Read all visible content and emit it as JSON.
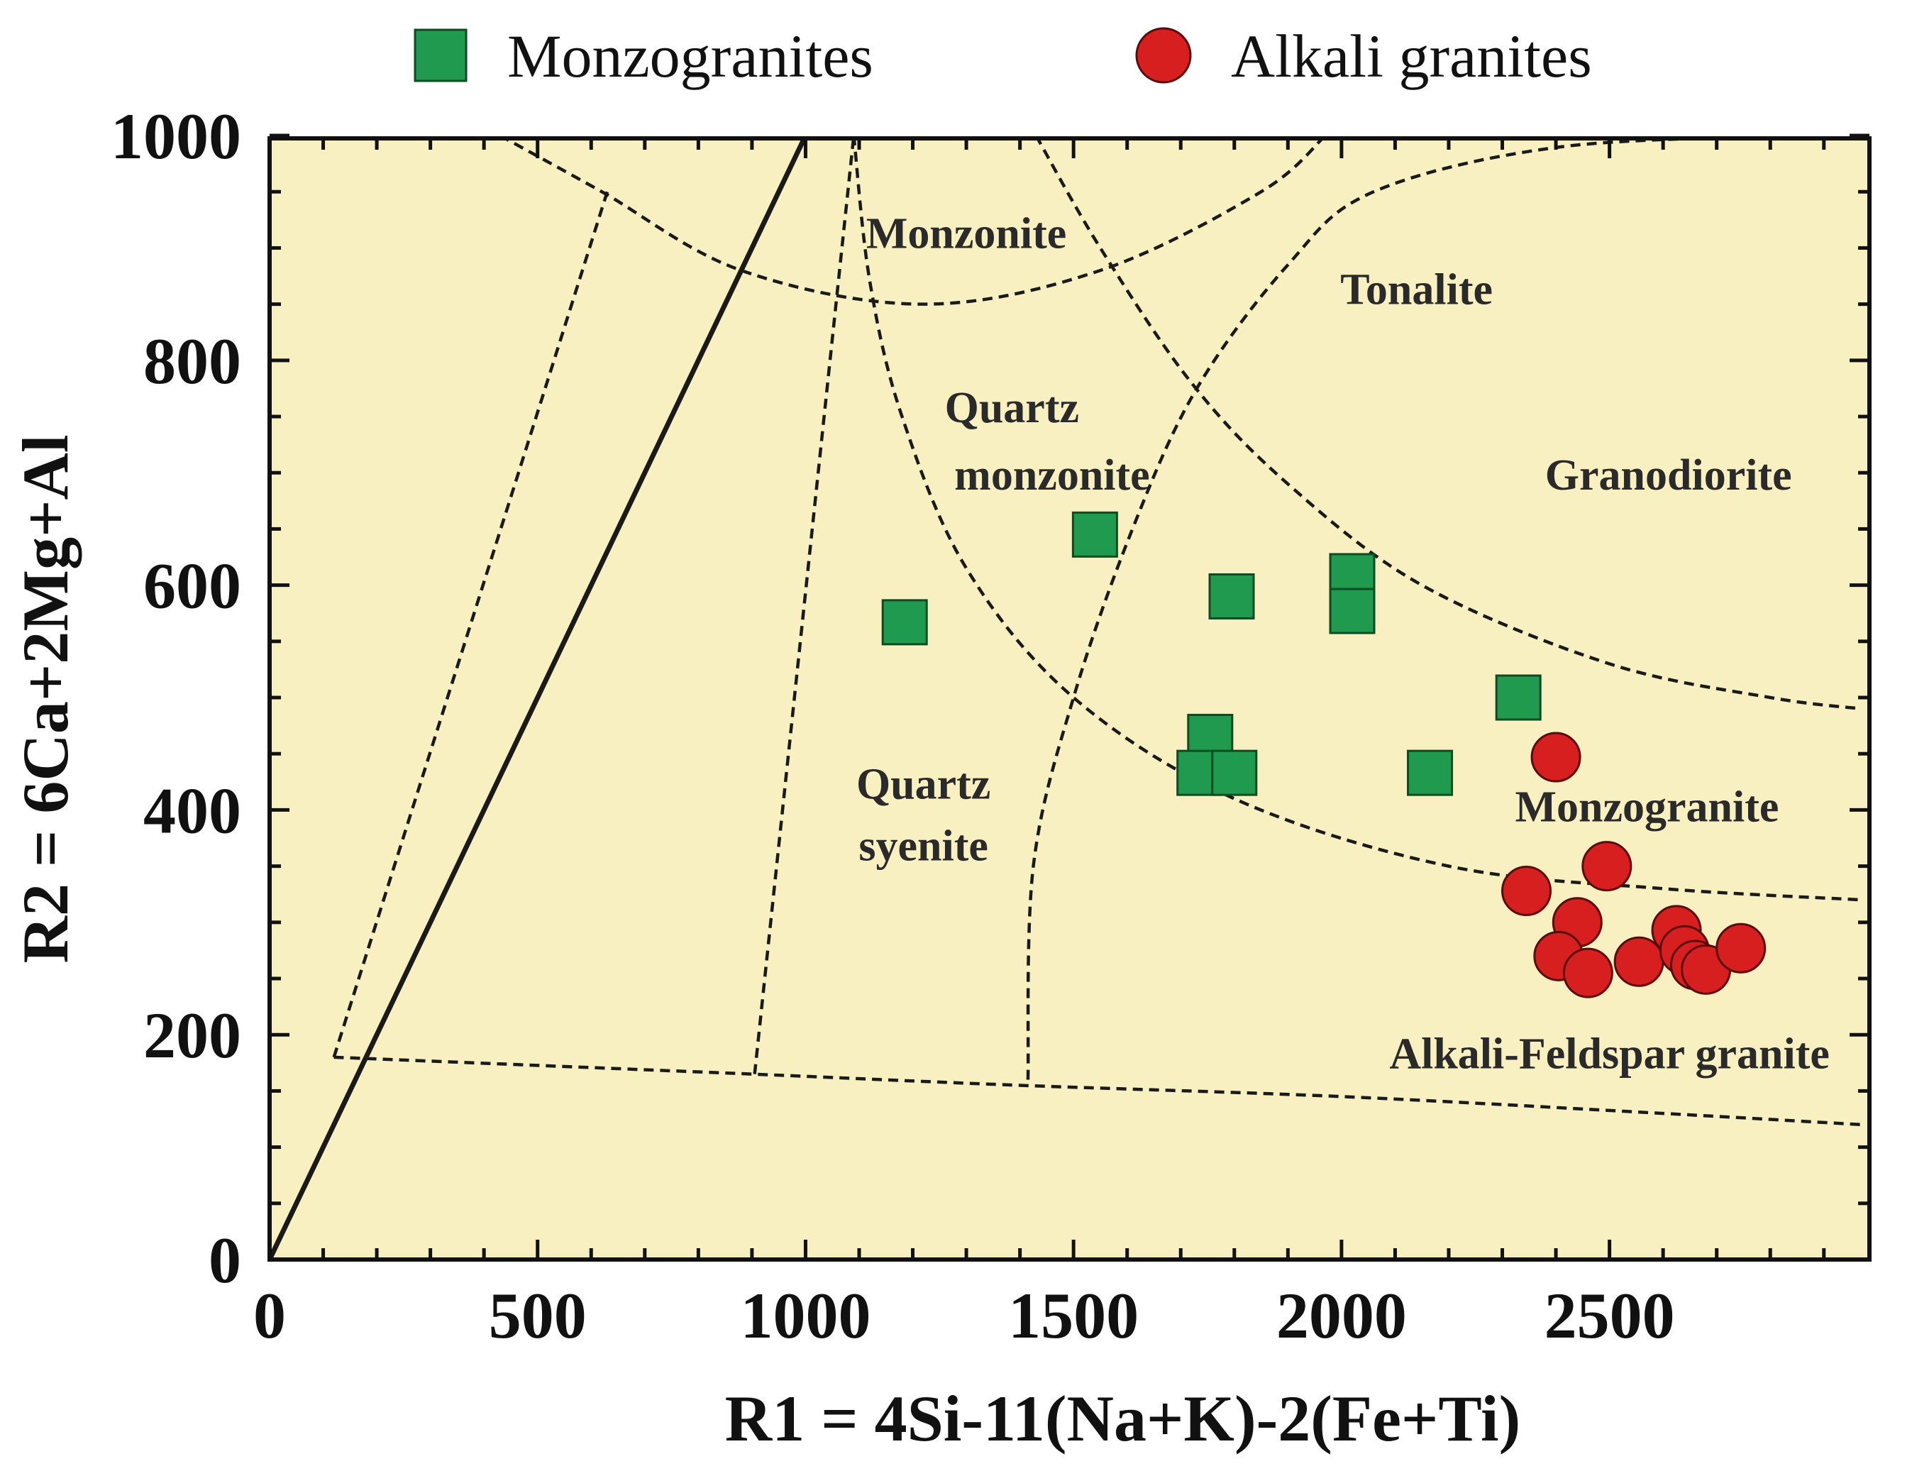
{
  "chart_data": {
    "type": "scatter",
    "title": "",
    "xlabel": "R1 = 4Si-11(Na+K)-2(Fe+Ti)",
    "ylabel": "R2 = 6Ca+2Mg+Al",
    "xlim": [
      0,
      3000
    ],
    "ylim": [
      0,
      1000
    ],
    "xticks": [
      0,
      500,
      1000,
      1500,
      2000,
      2500
    ],
    "yticks": [
      0,
      200,
      400,
      600,
      800,
      1000
    ],
    "grid": false,
    "legend_position": "top",
    "colors": {
      "background": "#f9f0c2",
      "frame": "#111111",
      "monzogranites": "#1f9a4e",
      "alkali_granites": "#d71f1f"
    },
    "series": [
      {
        "name": "Monzogranites",
        "marker": "square",
        "color": "#1f9a4e",
        "points": [
          [
            1185,
            567
          ],
          [
            1540,
            645
          ],
          [
            1795,
            590
          ],
          [
            2020,
            608
          ],
          [
            2020,
            577
          ],
          [
            1755,
            465
          ],
          [
            1735,
            433
          ],
          [
            1800,
            433
          ],
          [
            2165,
            433
          ],
          [
            2330,
            500
          ]
        ]
      },
      {
        "name": "Alkali granites",
        "marker": "circle",
        "color": "#d71f1f",
        "points": [
          [
            2400,
            447
          ],
          [
            2495,
            350
          ],
          [
            2345,
            328
          ],
          [
            2440,
            300
          ],
          [
            2405,
            270
          ],
          [
            2460,
            255
          ],
          [
            2555,
            265
          ],
          [
            2625,
            293
          ],
          [
            2640,
            275
          ],
          [
            2660,
            262
          ],
          [
            2680,
            258
          ],
          [
            2745,
            277
          ]
        ]
      }
    ],
    "boundaries": [
      {
        "name": "solid-line",
        "style": "solid",
        "points": [
          [
            0,
            0
          ],
          [
            1000,
            1000
          ]
        ]
      },
      {
        "name": "base-line",
        "style": "dashed",
        "points": [
          [
            120,
            180
          ],
          [
            900,
            165
          ],
          [
            1400,
            155
          ],
          [
            2000,
            145
          ],
          [
            2600,
            130
          ],
          [
            2970,
            120
          ]
        ]
      },
      {
        "name": "left-boundary",
        "style": "dashed",
        "points": [
          [
            120,
            180
          ],
          [
            630,
            950
          ]
        ]
      },
      {
        "name": "syenite-boundary",
        "style": "dashed",
        "points": [
          [
            905,
            165
          ],
          [
            1090,
            1000
          ]
        ]
      },
      {
        "name": "tonalite-boundary",
        "style": "dashed",
        "points": [
          [
            1415,
            160
          ],
          [
            1425,
            350
          ],
          [
            1500,
            500
          ],
          [
            1610,
            650
          ],
          [
            1730,
            775
          ],
          [
            1900,
            885
          ],
          [
            2060,
            950
          ],
          [
            2410,
            990
          ],
          [
            2880,
            1000
          ]
        ]
      },
      {
        "name": "monzonite-arc",
        "style": "dashed",
        "points": [
          [
            430,
            1000
          ],
          [
            620,
            950
          ],
          [
            880,
            880
          ],
          [
            1220,
            850
          ],
          [
            1550,
            880
          ],
          [
            1850,
            950
          ],
          [
            1970,
            1000
          ]
        ]
      },
      {
        "name": "quartz-monzonite-lower",
        "style": "dashed",
        "points": [
          [
            1090,
            1000
          ],
          [
            1120,
            870
          ],
          [
            1180,
            750
          ],
          [
            1300,
            615
          ],
          [
            1500,
            500
          ],
          [
            1800,
            410
          ],
          [
            2200,
            350
          ],
          [
            2600,
            330
          ],
          [
            2970,
            320
          ]
        ]
      },
      {
        "name": "granodiorite-lower",
        "style": "dashed",
        "points": [
          [
            1430,
            1000
          ],
          [
            1550,
            900
          ],
          [
            1720,
            780
          ],
          [
            1900,
            690
          ],
          [
            2150,
            600
          ],
          [
            2500,
            530
          ],
          [
            2800,
            500
          ],
          [
            2970,
            490
          ]
        ]
      }
    ],
    "region_labels": [
      {
        "text": "Monzonite",
        "x": 1300,
        "y": 900
      },
      {
        "text": "Tonalite",
        "x": 2140,
        "y": 850
      },
      {
        "text": "Quartz",
        "x": 1385,
        "y": 745
      },
      {
        "text": "monzonite",
        "x": 1460,
        "y": 685
      },
      {
        "text": "Granodiorite",
        "x": 2610,
        "y": 685
      },
      {
        "text": "Quartz",
        "x": 1220,
        "y": 410
      },
      {
        "text": "syenite",
        "x": 1220,
        "y": 355
      },
      {
        "text": "Monzogranite",
        "x": 2570,
        "y": 390
      },
      {
        "text": "Alkali-Feldspar granite",
        "x": 2500,
        "y": 170
      }
    ]
  }
}
